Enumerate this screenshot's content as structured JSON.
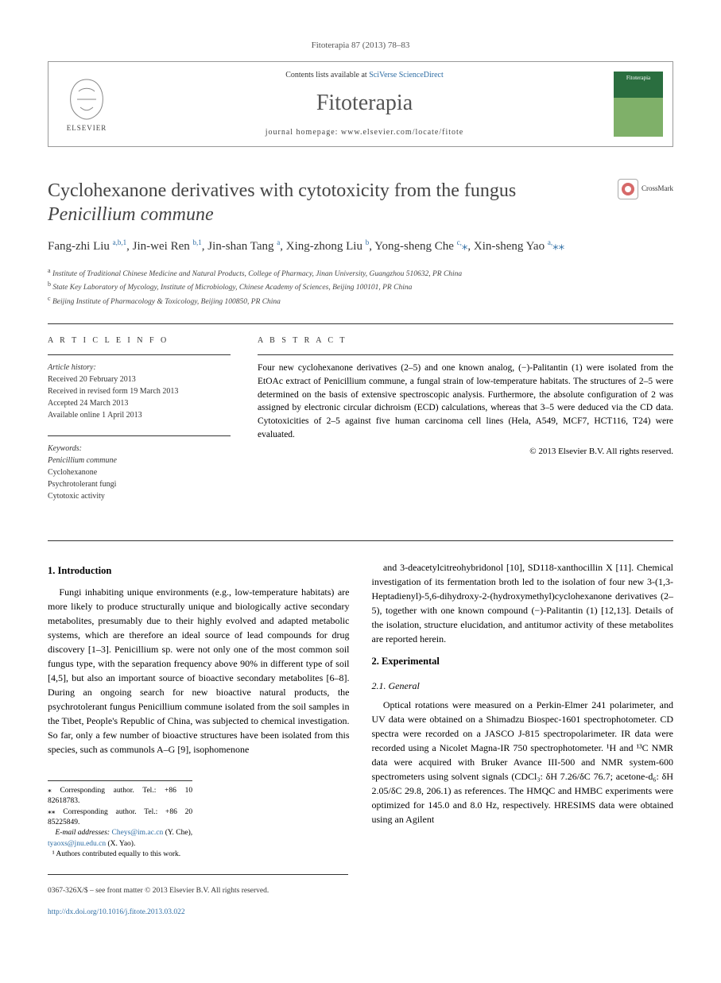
{
  "journal_ref": "Fitoterapia 87 (2013) 78–83",
  "header": {
    "contents_prefix": "Contents lists available at ",
    "contents_link": "SciVerse ScienceDirect",
    "journal_name": "Fitoterapia",
    "homepage": "journal homepage: www.elsevier.com/locate/fitote",
    "publisher": "ELSEVIER",
    "cover_label": "Fitoterapia"
  },
  "title_line1": "Cyclohexanone derivatives with cytotoxicity from the fungus",
  "title_line2_italic": "Penicillium commune",
  "crossmark_label": "CrossMark",
  "authors": [
    {
      "name": "Fang-zhi Liu",
      "sup": "a,b,1"
    },
    {
      "name": "Jin-wei Ren",
      "sup": "b,1"
    },
    {
      "name": "Jin-shan Tang",
      "sup": "a"
    },
    {
      "name": "Xing-zhong Liu",
      "sup": "b"
    },
    {
      "name": "Yong-sheng Che",
      "sup": "c,",
      "ast": "⁎"
    },
    {
      "name": "Xin-sheng Yao",
      "sup": "a,",
      "ast": "⁎⁎"
    }
  ],
  "affiliations": [
    {
      "sup": "a",
      "text": "Institute of Traditional Chinese Medicine and Natural Products, College of Pharmacy, Jinan University, Guangzhou 510632, PR China"
    },
    {
      "sup": "b",
      "text": "State Key Laboratory of Mycology, Institute of Microbiology, Chinese Academy of Sciences, Beijing 100101, PR China"
    },
    {
      "sup": "c",
      "text": "Beijing Institute of Pharmacology & Toxicology, Beijing 100850, PR China"
    }
  ],
  "info": {
    "heading": "A R T I C L E   I N F O",
    "history_label": "Article history:",
    "history": [
      "Received 20 February 2013",
      "Received in revised form 19 March 2013",
      "Accepted 24 March 2013",
      "Available online 1 April 2013"
    ],
    "keywords_label": "Keywords:",
    "keywords": [
      "Penicillium commune",
      "Cyclohexanone",
      "Psychrotolerant fungi",
      "Cytotoxic activity"
    ]
  },
  "abstract": {
    "heading": "A B S T R A C T",
    "text": "Four new cyclohexanone derivatives (2–5) and one known analog, (−)-Palitantin (1) were isolated from the EtOAc extract of Penicillium commune, a fungal strain of low-temperature habitats. The structures of 2–5 were determined on the basis of extensive spectroscopic analysis. Furthermore, the absolute configuration of 2 was assigned by electronic circular dichroism (ECD) calculations, whereas that 3–5 were deduced via the CD data. Cytotoxicities of 2–5 against five human carcinoma cell lines (Hela, A549, MCF7, HCT116, T24) were evaluated.",
    "copyright": "© 2013 Elsevier B.V. All rights reserved."
  },
  "sections": {
    "intro_head": "1. Introduction",
    "intro_p1": "Fungi inhabiting unique environments (e.g., low-temperature habitats) are more likely to produce structurally unique and biologically active secondary metabolites, presumably due to their highly evolved and adapted metabolic systems, which are therefore an ideal source of lead compounds for drug discovery [1–3]. Penicillium sp. were not only one of the most common soil fungus type, with the separation frequency above 90% in different type of soil [4,5], but also an important source of bioactive secondary metabolites [6–8]. During an ongoing search for new bioactive natural products, the psychrotolerant fungus Penicillium commune isolated from the soil samples in the Tibet, People's Republic of China, was subjected to chemical investigation. So far, only a few number of bioactive structures have been isolated from this species, such as communols A–G [9], isophomenone",
    "intro_p2": "and 3-deacetylcitreohybridonol [10], SD118-xanthocillin X [11]. Chemical investigation of its fermentation broth led to the isolation of four new 3-(1,3-Heptadienyl)-5,6-dihydroxy-2-(hydroxymethyl)cyclohexanone derivatives (2–5), together with one known compound (−)-Palitantin (1) [12,13]. Details of the isolation, structure elucidation, and antitumor activity of these metabolites are reported herein.",
    "exp_head": "2. Experimental",
    "general_head": "2.1. General",
    "general_p": "Optical rotations were measured on a Perkin-Elmer 241 polarimeter, and UV data were obtained on a Shimadzu Biospec-1601 spectrophotometer. CD spectra were recorded on a JASCO J-815 spectropolarimeter. IR data were recorded using a Nicolet Magna-IR 750 spectrophotometer. ¹H and ¹³C NMR data were acquired with Bruker Avance III-500 and NMR system-600 spectrometers using solvent signals (CDCl₃: δH 7.26/δC 76.7; acetone-d₆: δH 2.05/δC 29.8, 206.1) as references. The HMQC and HMBC experiments were optimized for 145.0 and 8.0 Hz, respectively. HRESIMS data were obtained using an Agilent"
  },
  "footnotes": {
    "corr1": "⁎ Corresponding author. Tel.: +86 10 82618783.",
    "corr2": "⁎⁎ Corresponding author. Tel.: +86 20 85225849.",
    "emails_label": "E-mail addresses:",
    "email1": "Cheys@im.ac.cn",
    "email1_who": "(Y. Che),",
    "email2": "tyaoxs@jnu.edu.cn",
    "email2_who": "(X. Yao).",
    "note1": "¹ Authors contributed equally to this work."
  },
  "footer": {
    "line1": "0367-326X/$ – see front matter © 2013 Elsevier B.V. All rights reserved.",
    "doi": "http://dx.doi.org/10.1016/j.fitote.2013.03.022"
  },
  "colors": {
    "link": "#2e6da4",
    "text_muted": "#555",
    "rule": "#333"
  }
}
